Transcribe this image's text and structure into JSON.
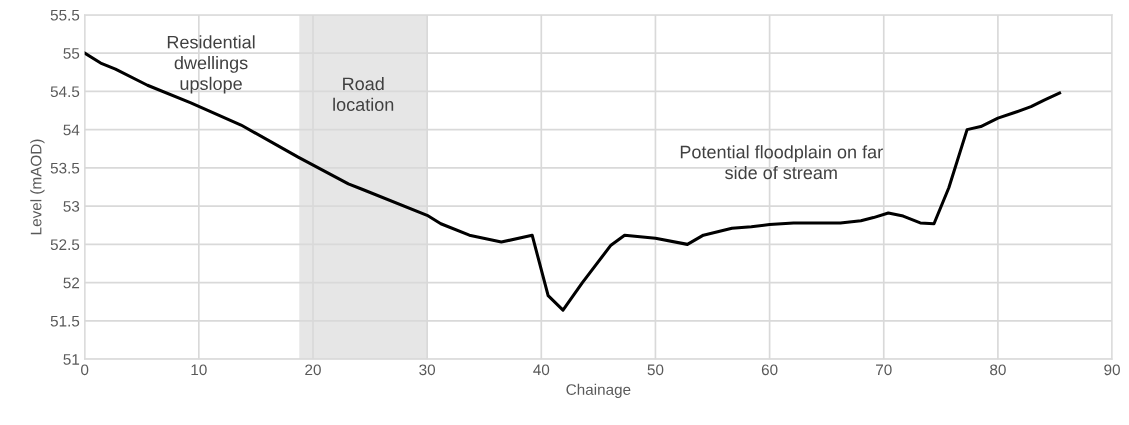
{
  "chart_data": {
    "type": "line",
    "xlabel": "Chainage",
    "ylabel": "Level (mAOD)",
    "series": [
      {
        "color": "#000000",
        "x": [
          0,
          1.4,
          2.7,
          5.5,
          9.3,
          13.7,
          18.7,
          23.1,
          24.3,
          30,
          31.2,
          33.7,
          36.5,
          39.2,
          40.6,
          41.9,
          43.6,
          46.1,
          47.3,
          50,
          52.8,
          54.2,
          56.7,
          58.4,
          60,
          62.1,
          66.2,
          68,
          69.1,
          70.4,
          71.7,
          73.2,
          74.4,
          75.7,
          77.3,
          78.5,
          80,
          81.4,
          82.9,
          84.1,
          85.4
        ],
        "values": [
          55.0,
          54.87,
          54.79,
          54.58,
          54.35,
          54.06,
          53.64,
          53.29,
          53.22,
          52.88,
          52.77,
          52.62,
          52.53,
          52.62,
          51.83,
          51.64,
          52.0,
          52.49,
          52.62,
          52.58,
          52.5,
          52.62,
          52.71,
          52.73,
          52.76,
          52.78,
          52.78,
          52.81,
          52.85,
          52.91,
          52.87,
          52.78,
          52.77,
          53.24,
          54.0,
          54.04,
          54.15,
          54.22,
          54.3,
          54.39,
          54.48
        ]
      }
    ],
    "bands": [
      {
        "axis": "x",
        "from": 18.8,
        "to": 30,
        "color": "#d9d9d9",
        "label": "Road\nlocation"
      }
    ],
    "annotations": [
      "Residential\ndwellings\nupslope",
      "Potential floodplain on far\nside of stream"
    ],
    "xlim": [
      0,
      90
    ],
    "xticks": [
      0,
      10,
      20,
      30,
      40,
      50,
      60,
      70,
      80,
      90
    ],
    "ylim": [
      51,
      55.5
    ],
    "yticks": [
      51,
      {
        "value": 51.5,
        "label": "51.5"
      },
      52,
      {
        "value": 52.5,
        "label": "52.5"
      },
      53,
      {
        "value": 53.5,
        "label": "53.5"
      },
      54,
      {
        "value": 54.5,
        "label": "54.5"
      },
      55,
      {
        "value": 55.5,
        "label": "55.5"
      }
    ],
    "grid": true,
    "marker": "none",
    "line_style": "solid"
  }
}
